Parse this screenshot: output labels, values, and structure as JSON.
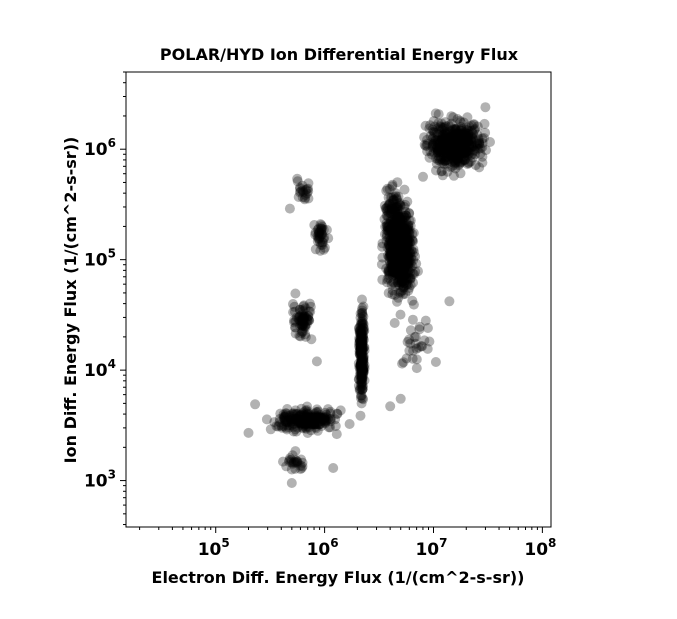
{
  "chart_data": {
    "type": "scatter",
    "title": "POLAR/HYD  Ion Differential Energy Flux",
    "xlabel": "Electron Diff. Energy Flux (1/(cm^2-s-sr))",
    "ylabel": "Ion Diff. Energy Flux (1/(cm^2-s-sr))",
    "xscale": "log",
    "yscale": "log",
    "xlim": [
      15000,
      120000000
    ],
    "ylim": [
      380,
      5000000
    ],
    "grid": false,
    "x_ticks": [
      {
        "base": "10",
        "exp": "5",
        "value": 100000
      },
      {
        "base": "10",
        "exp": "6",
        "value": 1000000
      },
      {
        "base": "10",
        "exp": "7",
        "value": 10000000
      },
      {
        "base": "10",
        "exp": "8",
        "value": 100000000
      }
    ],
    "y_ticks": [
      {
        "base": "10",
        "exp": "3",
        "value": 1000
      },
      {
        "base": "10",
        "exp": "4",
        "value": 10000
      },
      {
        "base": "10",
        "exp": "5",
        "value": 100000
      },
      {
        "base": "10",
        "exp": "6",
        "value": 1000000
      }
    ],
    "marker_color": "#000000",
    "marker_alpha": 0.3,
    "clusters": [
      {
        "x": [
          3000000,
          8000000
        ],
        "y": [
          30000,
          500000
        ],
        "count": 700,
        "note_shape": "main core"
      },
      {
        "x": [
          6000000,
          40000000
        ],
        "y": [
          500000,
          2400000
        ],
        "count": 450
      },
      {
        "x": [
          2000000,
          2400000
        ],
        "y": [
          3000,
          60000
        ],
        "count": 220
      },
      {
        "x": [
          250000,
          2000000
        ],
        "y": [
          2500,
          5000
        ],
        "count": 220
      },
      {
        "x": [
          450000,
          900000
        ],
        "y": [
          15000,
          60000
        ],
        "count": 70
      },
      {
        "x": [
          700000,
          1200000
        ],
        "y": [
          100000,
          250000
        ],
        "count": 40
      },
      {
        "x": [
          500000,
          800000
        ],
        "y": [
          300000,
          550000
        ],
        "count": 20
      },
      {
        "x": [
          350000,
          800000
        ],
        "y": [
          1000,
          2000
        ],
        "count": 25
      },
      {
        "x": [
          3000000,
          14000000
        ],
        "y": [
          5000,
          60000
        ],
        "count": 30
      },
      {
        "x": [
          3000000,
          6000000
        ],
        "y": [
          100000,
          800000
        ],
        "count": 60
      }
    ],
    "points": [
      {
        "x": 200000,
        "y": 2700
      },
      {
        "x": 230000,
        "y": 4900
      },
      {
        "x": 500000,
        "y": 950
      },
      {
        "x": 1200000,
        "y": 1300
      },
      {
        "x": 14000000,
        "y": 42000
      },
      {
        "x": 30000000,
        "y": 2400000
      },
      {
        "x": 6500000,
        "y": 15000
      },
      {
        "x": 5000000,
        "y": 5500
      },
      {
        "x": 4000000,
        "y": 4700
      },
      {
        "x": 560000,
        "y": 540000
      },
      {
        "x": 480000,
        "y": 290000
      },
      {
        "x": 850000,
        "y": 12000
      }
    ]
  }
}
